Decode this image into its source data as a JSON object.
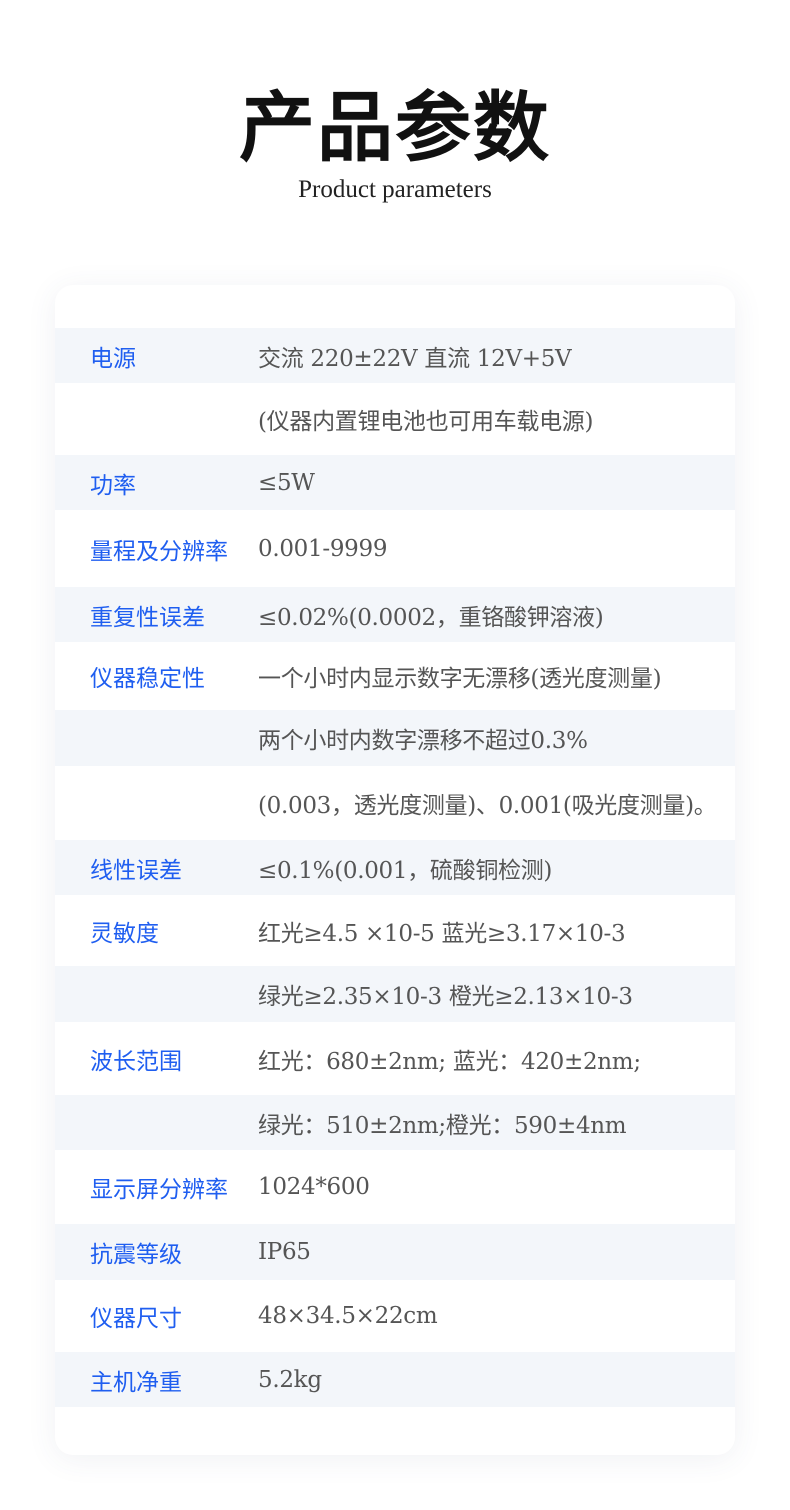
{
  "header": {
    "title": "产品参数",
    "subtitle": "Product parameters"
  },
  "colors": {
    "label": "#1f5ef0",
    "value": "#555555",
    "shade": "#f3f6fa"
  },
  "rows": [
    {
      "label": "电源",
      "value": "交流 220±22V 直流 12V+5V",
      "shade": true
    },
    {
      "label": "",
      "value": "(仪器内置锂电池也可用车载电源)",
      "shade": false
    },
    {
      "label": "功率",
      "value": "≤5W",
      "shade": true
    },
    {
      "label": "量程及分辨率",
      "value": "0.001-9999",
      "shade": false
    },
    {
      "label": "重复性误差",
      "value": "≤0.02%(0.0002，重铬酸钾溶液)",
      "shade": true
    },
    {
      "label": "仪器稳定性",
      "value": "一个小时内显示数字无漂移(透光度测量)",
      "shade": false
    },
    {
      "label": "",
      "value": "两个小时内数字漂移不超过0.3%",
      "shade": true
    },
    {
      "label": "",
      "value": "(0.003，透光度测量)、0.001(吸光度测量)。",
      "shade": false
    },
    {
      "label": "线性误差",
      "value": "≤0.1%(0.001，硫酸铜检测)",
      "shade": true
    },
    {
      "label": "灵敏度",
      "value": "红光≥4.5 ×10-5 蓝光≥3.17×10-3",
      "shade": false
    },
    {
      "label": "",
      "value": "绿光≥2.35×10-3 橙光≥2.13×10-3",
      "shade": true
    },
    {
      "label": "波长范围",
      "value": "红光：680±2nm; 蓝光：420±2nm;",
      "shade": false
    },
    {
      "label": "",
      "value": "绿光：510±2nm;橙光：590±4nm",
      "shade": true
    },
    {
      "label": "显示屏分辨率",
      "value": "1024*600",
      "shade": false
    },
    {
      "label": "抗震等级",
      "value": "IP65",
      "shade": true
    },
    {
      "label": "仪器尺寸",
      "value": "48×34.5×22cm",
      "shade": false
    },
    {
      "label": "主机净重",
      "value": "5.2kg",
      "shade": true
    }
  ]
}
